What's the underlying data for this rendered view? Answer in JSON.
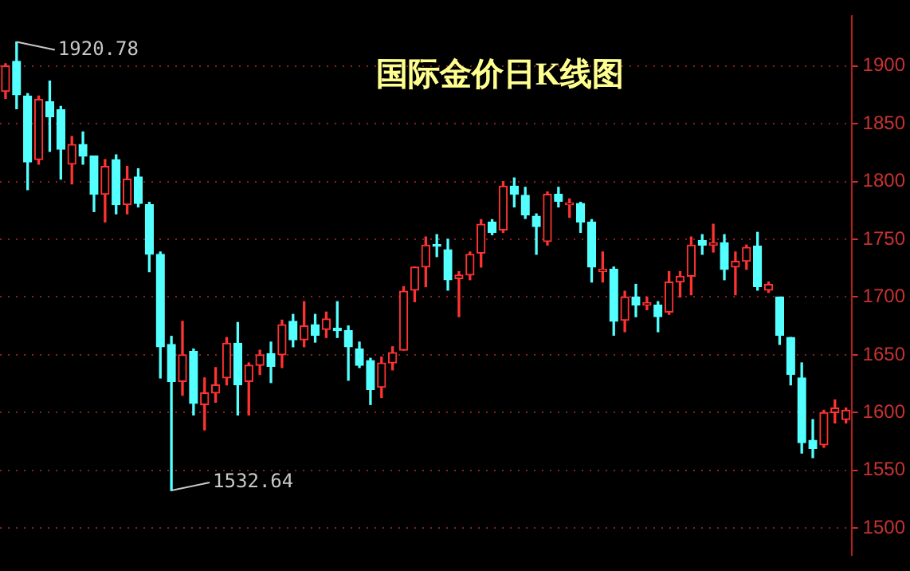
{
  "chart_data": {
    "type": "candlestick",
    "title": "国际金价日K线图",
    "categories": [
      null,
      null,
      null,
      null,
      null,
      null,
      null,
      null,
      null,
      null,
      null,
      null,
      null,
      null,
      null,
      null,
      null,
      null,
      null,
      null,
      null,
      null,
      null,
      null,
      null,
      null,
      null,
      null,
      null,
      null,
      null,
      null,
      null,
      null,
      null,
      null,
      null,
      null,
      null,
      null,
      null,
      null,
      null,
      null,
      null,
      null,
      null,
      null,
      null,
      null,
      null,
      null,
      null,
      null,
      null,
      null,
      null,
      null,
      null,
      null,
      null,
      null,
      null,
      null,
      null,
      null,
      null,
      null,
      null,
      null,
      null,
      null,
      null,
      null,
      null,
      null,
      null
    ],
    "ohlc": [
      [
        1878,
        1902,
        1872,
        1900
      ],
      [
        1904,
        1920.78,
        1863,
        1875
      ],
      [
        1874,
        1876,
        1793,
        1817
      ],
      [
        1819,
        1874,
        1815,
        1871
      ],
      [
        1869,
        1887,
        1826,
        1856
      ],
      [
        1862,
        1865,
        1802,
        1828
      ],
      [
        1815,
        1839,
        1798,
        1832
      ],
      [
        1832,
        1843,
        1815,
        1822
      ],
      [
        1822,
        1822,
        1774,
        1789
      ],
      [
        1789,
        1819,
        1765,
        1813
      ],
      [
        1819,
        1823,
        1772,
        1780
      ],
      [
        1780,
        1813,
        1772,
        1802
      ],
      [
        1804,
        1811,
        1778,
        1781
      ],
      [
        1780,
        1782,
        1722,
        1737
      ],
      [
        1737,
        1739,
        1630,
        1657
      ],
      [
        1659,
        1666,
        1532.64,
        1627
      ],
      [
        1627,
        1679,
        1615,
        1650
      ],
      [
        1653,
        1655,
        1598,
        1608
      ],
      [
        1607,
        1630,
        1585,
        1617
      ],
      [
        1617,
        1639,
        1609,
        1624
      ],
      [
        1630,
        1665,
        1624,
        1660
      ],
      [
        1660,
        1678,
        1598,
        1624
      ],
      [
        1627,
        1643,
        1598,
        1641
      ],
      [
        1641,
        1654,
        1633,
        1650
      ],
      [
        1651,
        1661,
        1626,
        1640
      ],
      [
        1650,
        1680,
        1639,
        1676
      ],
      [
        1679,
        1685,
        1657,
        1663
      ],
      [
        1663,
        1696,
        1657,
        1675
      ],
      [
        1676,
        1685,
        1661,
        1667
      ],
      [
        1672,
        1687,
        1665,
        1681
      ],
      [
        1673,
        1696,
        1665,
        1671
      ],
      [
        1671,
        1675,
        1628,
        1657
      ],
      [
        1655,
        1661,
        1639,
        1641
      ],
      [
        1645,
        1647,
        1607,
        1620
      ],
      [
        1622,
        1648,
        1613,
        1643
      ],
      [
        1643,
        1657,
        1637,
        1652
      ],
      [
        1654,
        1709,
        1654,
        1705
      ],
      [
        1706,
        1726,
        1696,
        1726
      ],
      [
        1726,
        1752,
        1709,
        1745
      ],
      [
        1745,
        1754,
        1735,
        1744
      ],
      [
        1741,
        1750,
        1706,
        1715
      ],
      [
        1716,
        1722,
        1683,
        1719
      ],
      [
        1719,
        1739,
        1715,
        1737
      ],
      [
        1738,
        1767,
        1726,
        1763
      ],
      [
        1765,
        1767,
        1754,
        1756
      ],
      [
        1758,
        1800,
        1756,
        1796
      ],
      [
        1796,
        1803,
        1778,
        1789
      ],
      [
        1788,
        1795,
        1768,
        1771
      ],
      [
        1770,
        1772,
        1737,
        1761
      ],
      [
        1748,
        1791,
        1745,
        1789
      ],
      [
        1789,
        1795,
        1778,
        1783
      ],
      [
        1780,
        1785,
        1769,
        1781
      ],
      [
        1781,
        1782,
        1756,
        1765
      ],
      [
        1765,
        1767,
        1713,
        1726
      ],
      [
        1722,
        1739,
        1713,
        1724
      ],
      [
        1724,
        1726,
        1667,
        1679
      ],
      [
        1680,
        1705,
        1670,
        1700
      ],
      [
        1700,
        1711,
        1683,
        1693
      ],
      [
        1693,
        1700,
        1689,
        1695
      ],
      [
        1693,
        1696,
        1670,
        1683
      ],
      [
        1687,
        1722,
        1685,
        1713
      ],
      [
        1713,
        1722,
        1700,
        1718
      ],
      [
        1718,
        1752,
        1702,
        1745
      ],
      [
        1749,
        1754,
        1737,
        1745
      ],
      [
        1745,
        1763,
        1739,
        1747
      ],
      [
        1747,
        1754,
        1715,
        1724
      ],
      [
        1726,
        1739,
        1702,
        1731
      ],
      [
        1731,
        1745,
        1724,
        1743
      ],
      [
        1744,
        1756,
        1706,
        1709
      ],
      [
        1706,
        1713,
        1704,
        1711
      ],
      [
        1700,
        1700,
        1659,
        1667
      ],
      [
        1665,
        1665,
        1624,
        1633
      ],
      [
        1630,
        1643,
        1565,
        1574
      ],
      [
        1576,
        1594,
        1561,
        1569
      ],
      [
        1572,
        1602,
        1570,
        1600
      ],
      [
        1600,
        1611,
        1591,
        1604
      ],
      [
        1594,
        1604,
        1591,
        1602
      ]
    ],
    "colors": [
      "#ff3232",
      "#54ffff",
      "#54ffff",
      "#ff3232",
      "#54ffff",
      "#54ffff",
      "#ff3232",
      "#54ffff",
      "#54ffff",
      "#ff3232",
      "#54ffff",
      "#ff3232",
      "#54ffff",
      "#54ffff",
      "#54ffff",
      "#54ffff",
      "#ff3232",
      "#54ffff",
      "#ff3232",
      "#ff3232",
      "#ff3232",
      "#54ffff",
      "#ff3232",
      "#ff3232",
      "#54ffff",
      "#ff3232",
      "#54ffff",
      "#ff3232",
      "#54ffff",
      "#ff3232",
      "#54ffff",
      "#54ffff",
      "#54ffff",
      "#54ffff",
      "#ff3232",
      "#ff3232",
      "#ff3232",
      "#ff3232",
      "#ff3232",
      "#54ffff",
      "#54ffff",
      "#ff3232",
      "#ff3232",
      "#ff3232",
      "#54ffff",
      "#ff3232",
      "#54ffff",
      "#54ffff",
      "#54ffff",
      "#ff3232",
      "#54ffff",
      "#ff3232",
      "#54ffff",
      "#54ffff",
      "#ff3232",
      "#54ffff",
      "#ff3232",
      "#54ffff",
      "#ff3232",
      "#54ffff",
      "#ff3232",
      "#ff3232",
      "#ff3232",
      "#54ffff",
      "#ff3232",
      "#54ffff",
      "#ff3232",
      "#ff3232",
      "#54ffff",
      "#ff3232",
      "#54ffff",
      "#54ffff",
      "#54ffff",
      "#54ffff",
      "#ff3232",
      "#ff3232",
      "#ff3232"
    ],
    "ylim": [
      1477,
      1943
    ],
    "yticks": [
      1500,
      1550,
      1600,
      1650,
      1700,
      1750,
      1800,
      1850,
      1900
    ],
    "grid": "y",
    "tick_labels": "y",
    "annotations": [
      "1920.78",
      "1532.64"
    ]
  }
}
